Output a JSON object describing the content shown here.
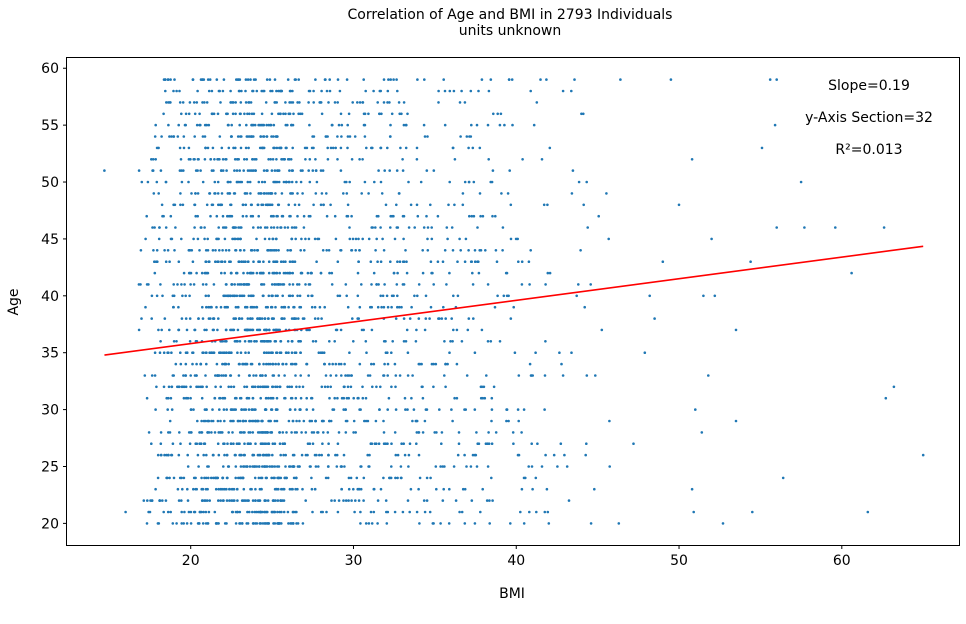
{
  "chart_data": {
    "type": "scatter",
    "title": "Correlation of Age and BMI in 2793 Individuals",
    "subtitle": "units unknown",
    "xlabel": "BMI",
    "ylabel": "Age",
    "xlim": [
      12.4,
      67.2
    ],
    "ylim": [
      18.1,
      60.9
    ],
    "xticks": [
      20,
      30,
      40,
      50,
      60
    ],
    "yticks": [
      20,
      25,
      30,
      35,
      40,
      45,
      50,
      55,
      60
    ],
    "grid": false,
    "point_color": "#1f77b4",
    "line_color": "#ff0000",
    "annotations": [
      "Slope=0.19",
      "y-Axis Section=32",
      "R²=0.013"
    ],
    "regression": {
      "slope": 0.19,
      "intercept": 32,
      "x_range": [
        14.7,
        65.0
      ]
    },
    "outliers": [
      [
        14.7,
        51
      ],
      [
        16.0,
        21
      ],
      [
        27.2,
        42
      ],
      [
        46.4,
        59
      ],
      [
        49.5,
        59
      ],
      [
        55.6,
        59
      ],
      [
        56.0,
        59
      ],
      [
        55.9,
        55
      ],
      [
        55.1,
        53
      ],
      [
        50.8,
        52
      ],
      [
        57.5,
        50
      ],
      [
        50.0,
        48
      ],
      [
        56.0,
        46
      ],
      [
        57.7,
        46
      ],
      [
        59.6,
        46
      ],
      [
        62.6,
        46
      ],
      [
        52.0,
        45
      ],
      [
        49.0,
        43
      ],
      [
        54.4,
        43
      ],
      [
        60.6,
        42
      ],
      [
        48.2,
        40
      ],
      [
        51.5,
        40
      ],
      [
        52.2,
        40
      ],
      [
        48.5,
        38
      ],
      [
        53.5,
        37
      ],
      [
        47.9,
        35
      ],
      [
        51.8,
        33
      ],
      [
        62.7,
        31
      ],
      [
        63.2,
        32
      ],
      [
        51.0,
        30
      ],
      [
        51.4,
        28
      ],
      [
        53.5,
        29
      ],
      [
        47.2,
        27
      ],
      [
        56.4,
        24
      ],
      [
        50.8,
        23
      ],
      [
        50.9,
        21
      ],
      [
        54.5,
        21
      ],
      [
        61.6,
        21
      ],
      [
        52.7,
        20
      ],
      [
        65.0,
        26
      ],
      [
        46.3,
        20
      ],
      [
        44.6,
        20
      ],
      [
        42.0,
        20
      ]
    ],
    "dense_region": {
      "x_min": 16.5,
      "x_max": 46,
      "x_peak": 26,
      "y_values": [
        20,
        21,
        22,
        23,
        24,
        25,
        26,
        27,
        28,
        29,
        30,
        31,
        32,
        33,
        34,
        35,
        36,
        37,
        38,
        39,
        40,
        41,
        42,
        43,
        44,
        45,
        46,
        47,
        48,
        49,
        50,
        51,
        52,
        53,
        54,
        55,
        56,
        57,
        58,
        59
      ]
    }
  }
}
